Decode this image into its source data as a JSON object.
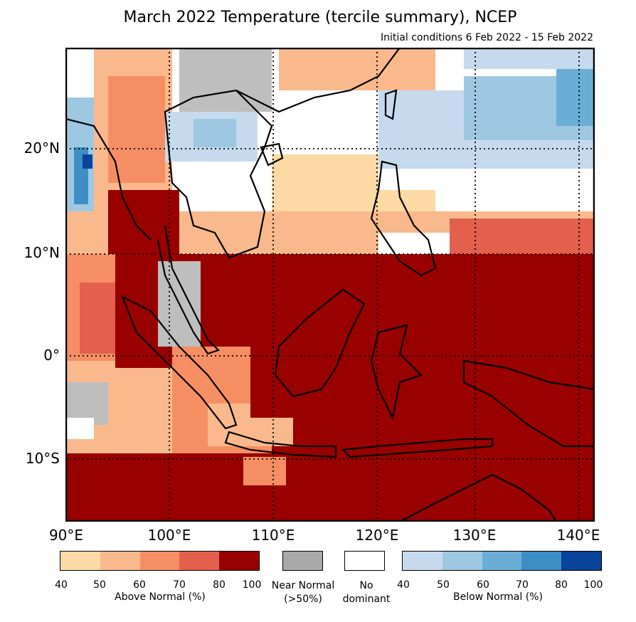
{
  "title": "March 2022 Temperature (tercile summary), NCEP",
  "subtitle": "Initial conditions 6 Feb 2022 - 15 Feb 2022",
  "map": {
    "lon_range": [
      90,
      142
    ],
    "lat_range": [
      -16,
      30
    ],
    "lat_labels": [
      "20°N",
      "10°N",
      "0°",
      "10°S"
    ],
    "lon_labels": [
      "90°E",
      "100°E",
      "110°E",
      "120°E",
      "130°E",
      "140°E"
    ],
    "colors": {
      "above_80_100": "#990000",
      "above_70_80": "#e2604c",
      "above_60_70": "#f58f63",
      "above_50_60": "#f9b98c",
      "above_40_50": "#fdd9a6",
      "near_normal": "#bebebe",
      "no_dominant": "#ffffff",
      "below_40_50": "#c6daee",
      "below_50_60": "#9ec8e1",
      "below_60_70": "#6aaed6",
      "below_70_80": "#3d8ec4",
      "below_80_100": "#08449a"
    }
  },
  "legend": {
    "above": {
      "colors": [
        "#fdd9a6",
        "#f9b98c",
        "#f58f63",
        "#e2604c",
        "#990000"
      ],
      "ticks": [
        "40",
        "50",
        "60",
        "70",
        "80",
        "100"
      ],
      "title": "Above Normal (%)"
    },
    "near_normal": {
      "color": "#a9a9a9",
      "label_line1": "Near Normal",
      "label_line2": "(>50%)"
    },
    "no_dominant": {
      "color": "#ffffff",
      "label_line1": "No",
      "label_line2": "dominant"
    },
    "below": {
      "colors": [
        "#c6daee",
        "#9ec8e1",
        "#6aaed6",
        "#3d8ec4",
        "#08449a"
      ],
      "ticks": [
        "40",
        "50",
        "60",
        "70",
        "80",
        "100"
      ],
      "title": "Below Normal (%)"
    }
  }
}
